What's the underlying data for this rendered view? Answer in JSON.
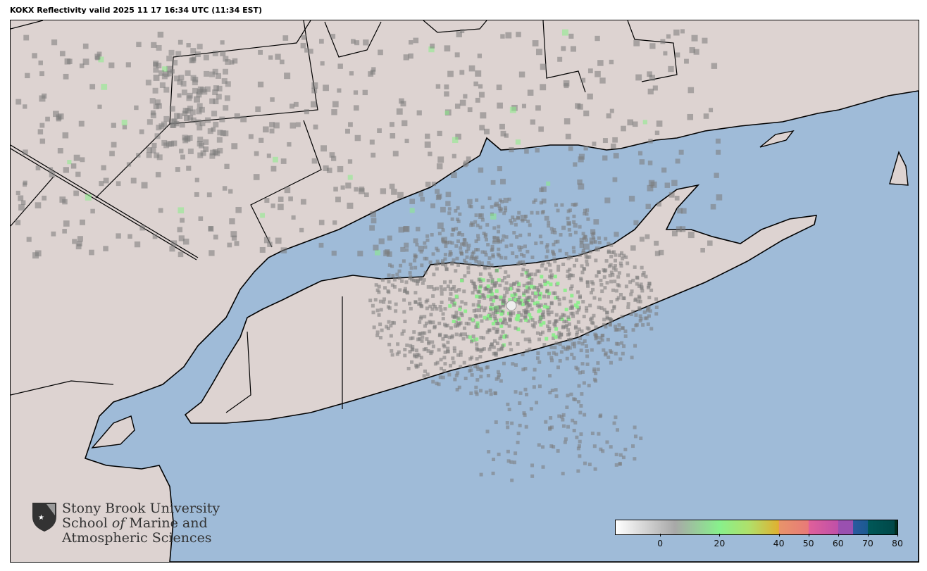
{
  "title": "KOKX Reflectivity valid 2025 11 17 16:34 UTC (11:34 EST)",
  "colors": {
    "ocean": "#9fbbd8",
    "land": "#ddd3d1",
    "border": "#000000",
    "echo": "#7a7a7a",
    "echo_light": "#88ee88"
  },
  "radar_site": "KOKX",
  "logo": {
    "line1": "Stony Brook University",
    "line2_a": "School ",
    "line2_of": "of",
    "line2_b": " Marine and",
    "line3": "Atmospheric Sciences"
  },
  "colorbar": {
    "min": -15,
    "max": 80,
    "ticks": [
      {
        "value": 0,
        "label": "0"
      },
      {
        "value": 20,
        "label": "20"
      },
      {
        "value": 40,
        "label": "40"
      },
      {
        "value": 50,
        "label": "50"
      },
      {
        "value": 60,
        "label": "60"
      },
      {
        "value": 70,
        "label": "70"
      },
      {
        "value": 80,
        "label": "80"
      }
    ],
    "stops": [
      [
        -15,
        "#ffffff"
      ],
      [
        5,
        "#a8a8a8"
      ],
      [
        20,
        "#88f08c"
      ],
      [
        30,
        "#b0e06a"
      ],
      [
        40,
        "#e0b030"
      ],
      [
        40.1,
        "#e8946a"
      ],
      [
        50,
        "#e87a78"
      ],
      [
        50.1,
        "#e0609a"
      ],
      [
        60,
        "#c050a8"
      ],
      [
        60.1,
        "#9a50b0"
      ],
      [
        65,
        "#9a50b0"
      ],
      [
        65.1,
        "#2a5aa0"
      ],
      [
        70,
        "#1a5a90"
      ],
      [
        70.1,
        "#005858"
      ],
      [
        79,
        "#004848"
      ],
      [
        79.1,
        "#003020"
      ],
      [
        80,
        "#003020"
      ]
    ]
  }
}
